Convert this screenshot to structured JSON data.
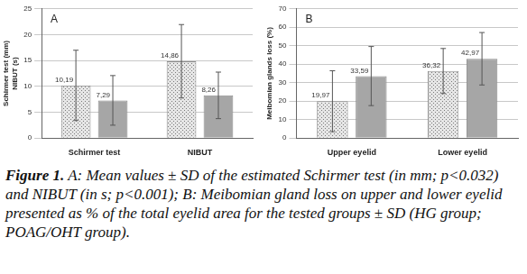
{
  "chart_data": [
    {
      "type": "bar",
      "label": "A",
      "y_label": [
        "Schirmer test (mm)",
        "NIBUT (s)"
      ],
      "categories": [
        "Schirmer test",
        "NIBUT"
      ],
      "series": [
        {
          "color": "#e6e6e6",
          "marker": "dots",
          "values": [
            10.19,
            14.86
          ],
          "value_labels": [
            "10,19",
            "14,86"
          ],
          "errors": [
            6.8,
            7.1
          ]
        },
        {
          "color": "#a6a6a6",
          "values": [
            7.29,
            8.26
          ],
          "value_labels": [
            "7,29",
            "8,26"
          ],
          "errors": [
            4.8,
            4.5
          ]
        }
      ],
      "ylim": [
        0,
        25
      ],
      "yticks": [
        0,
        5,
        10,
        15,
        20,
        25
      ],
      "grid": true,
      "data_labels": true
    },
    {
      "type": "bar",
      "label": "B",
      "y_label": [
        "Meibomian glands loss (%)"
      ],
      "categories": [
        "Upper eyelid",
        "Lower eyelid"
      ],
      "series": [
        {
          "color": "#e6e6e6",
          "marker": "dots",
          "values": [
            19.97,
            36.32
          ],
          "value_labels": [
            "19,97",
            "36,32"
          ],
          "errors": [
            16.5,
            12.2
          ]
        },
        {
          "color": "#a6a6a6",
          "values": [
            33.59,
            42.97
          ],
          "value_labels": [
            "33,59",
            "42,97"
          ],
          "errors": [
            16.0,
            14.2
          ]
        }
      ],
      "ylim": [
        0,
        70
      ],
      "yticks": [
        0,
        10,
        20,
        30,
        40,
        50,
        60,
        70
      ],
      "grid": true,
      "data_labels": true
    }
  ],
  "caption": {
    "label": "Figure 1.",
    "text": "A: Mean values ± SD of the estimated Schirmer test (in mm; p<0.032) and NIBUT (in s; p<0.001); B: Meibomian gland loss on upper and lower eyelid presented as % of the total eyelid area for the tested groups ± SD (HG group; POAG/OHT group)."
  }
}
